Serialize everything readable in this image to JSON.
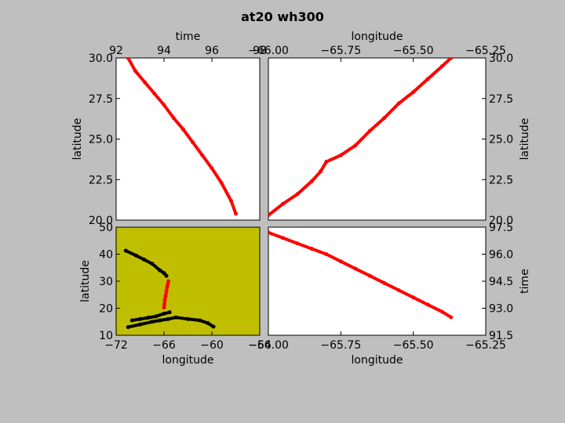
{
  "title": "at20 wh300",
  "colors": {
    "figure_bg": "#bfbfbf",
    "axes_bg": "#ffffff",
    "map_bg": "#bfbf00",
    "track": "#ff0000",
    "background_tracks": "#000000"
  },
  "chart_data": [
    {
      "id": "time-vs-latitude",
      "type": "scatter",
      "xlabel": "time",
      "ylabel": "latitude",
      "xlim": [
        92,
        98
      ],
      "ylim": [
        20,
        30
      ],
      "xticks": [
        "92",
        "94",
        "96",
        "98"
      ],
      "yticks": [
        "20.0",
        "22.5",
        "25.0",
        "27.5",
        "30.0"
      ],
      "series": [
        {
          "color": "#ff0000",
          "x": [
            92.5,
            92.8,
            93.2,
            93.6,
            94.0,
            94.4,
            94.8,
            95.2,
            95.6,
            96.0,
            96.4,
            96.8,
            97.0
          ],
          "y": [
            30.0,
            29.2,
            28.5,
            27.8,
            27.1,
            26.3,
            25.6,
            24.8,
            24.0,
            23.2,
            22.3,
            21.2,
            20.4
          ]
        }
      ]
    },
    {
      "id": "longitude-vs-latitude",
      "type": "scatter",
      "xlabel": "longitude",
      "ylabel": "latitude",
      "xlim": [
        -66.0,
        -65.25
      ],
      "ylim": [
        20,
        30
      ],
      "xticks": [
        "−66.00",
        "−65.75",
        "−65.50",
        "−65.25"
      ],
      "yticks": [
        "20.0",
        "22.5",
        "25.0",
        "27.5",
        "30.0"
      ],
      "series": [
        {
          "color": "#ff0000",
          "x": [
            -66.0,
            -65.95,
            -65.9,
            -65.85,
            -65.82,
            -65.8,
            -65.75,
            -65.7,
            -65.65,
            -65.6,
            -65.55,
            -65.5,
            -65.45,
            -65.4,
            -65.37
          ],
          "y": [
            20.3,
            21.0,
            21.6,
            22.4,
            23.0,
            23.6,
            24.0,
            24.6,
            25.5,
            26.3,
            27.2,
            27.9,
            28.7,
            29.5,
            30.0
          ]
        }
      ]
    },
    {
      "id": "longitude-vs-latitude-map",
      "type": "scatter",
      "xlabel": "longitude",
      "ylabel": "latitude",
      "xlim": [
        -72,
        -54
      ],
      "ylim": [
        10,
        50
      ],
      "xticks": [
        "−72",
        "−66",
        "−60",
        "−54"
      ],
      "yticks": [
        "10",
        "20",
        "30",
        "40",
        "50"
      ],
      "background": "#bfbf00",
      "series": [
        {
          "color": "#000000",
          "x": [
            -70.8,
            -69.5,
            -68.5,
            -67.5,
            -66.5,
            -66.0,
            -65.7
          ],
          "y": [
            41.3,
            39.5,
            38.0,
            36.5,
            34.0,
            33.0,
            32.0
          ]
        },
        {
          "color": "#000000",
          "x": [
            -70.5,
            -69.0,
            -67.5,
            -66.5,
            -65.5,
            -64.5,
            -63.0,
            -61.5,
            -60.5,
            -59.8
          ],
          "y": [
            13.0,
            14.0,
            15.0,
            15.5,
            16.0,
            16.6,
            16.0,
            15.5,
            14.5,
            13.2
          ]
        },
        {
          "color": "#000000",
          "x": [
            -70.0,
            -69.0,
            -68.0,
            -67.0,
            -66.0,
            -65.3
          ],
          "y": [
            15.5,
            16.0,
            16.5,
            17.0,
            18.0,
            18.5
          ]
        },
        {
          "color": "#ff0000",
          "x": [
            -66.0,
            -65.95,
            -65.9,
            -65.8,
            -65.7,
            -65.6,
            -65.45
          ],
          "y": [
            20.3,
            21.5,
            23.0,
            24.5,
            26.3,
            28.0,
            30.0
          ]
        }
      ]
    },
    {
      "id": "longitude-vs-time",
      "type": "scatter",
      "xlabel": "longitude",
      "ylabel": "time",
      "xlim": [
        -66.0,
        -65.25
      ],
      "ylim": [
        91.5,
        97.5
      ],
      "xticks": [
        "−66.00",
        "−65.75",
        "−65.50",
        "−65.25"
      ],
      "yticks": [
        "91.5",
        "93.0",
        "94.5",
        "96.0",
        "97.5"
      ],
      "series": [
        {
          "color": "#ff0000",
          "x": [
            -66.0,
            -65.95,
            -65.9,
            -65.85,
            -65.8,
            -65.75,
            -65.7,
            -65.65,
            -65.6,
            -65.55,
            -65.5,
            -65.45,
            -65.4,
            -65.37
          ],
          "y": [
            97.2,
            96.9,
            96.6,
            96.3,
            96.0,
            95.6,
            95.2,
            94.8,
            94.4,
            94.0,
            93.6,
            93.2,
            92.8,
            92.5
          ]
        }
      ]
    }
  ]
}
